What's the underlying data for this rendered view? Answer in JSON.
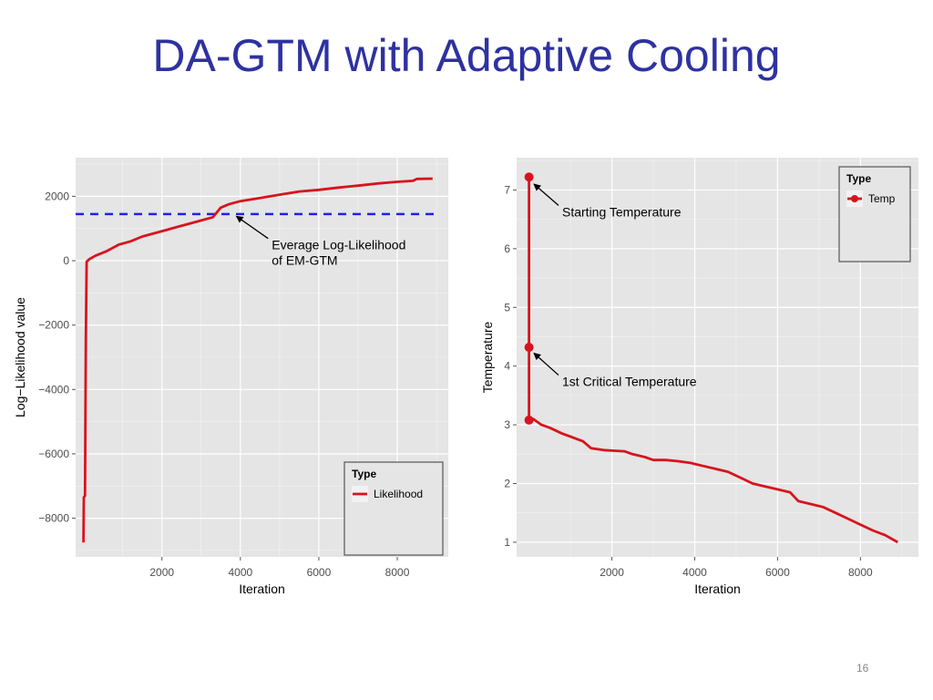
{
  "slide": {
    "title": "DA-GTM with Adaptive Cooling",
    "page_number": "16"
  },
  "colors": {
    "title": "#2e32a0",
    "series": "#d7141e",
    "reference_line": "#2020ee",
    "panel_background": "#e5e5e5",
    "grid": "#ffffff"
  },
  "chart_data": [
    {
      "type": "line",
      "xlabel": "Iteration",
      "ylabel": "Log−Likelihood value",
      "xlim": [
        -200,
        9300
      ],
      "ylim": [
        -9200,
        3200
      ],
      "x_ticks": [
        2000,
        4000,
        6000,
        8000
      ],
      "x_tick_labels": [
        "2000",
        "4000",
        "6000",
        "8000"
      ],
      "y_ticks": [
        -8000,
        -6000,
        -4000,
        -2000,
        0,
        2000
      ],
      "y_tick_labels": [
        "−8000",
        "−6000",
        "−4000",
        "−2000",
        "0",
        "2000"
      ],
      "grid": true,
      "legend": {
        "title": "Type",
        "position": "bottom-right",
        "entries": [
          "Likelihood"
        ]
      },
      "series": [
        {
          "name": "Likelihood",
          "color": "#d7141e",
          "x": [
            0,
            10,
            10,
            40,
            60,
            80,
            150,
            300,
            600,
            900,
            1200,
            1500,
            1800,
            2100,
            2400,
            2700,
            3000,
            3300,
            3400,
            3500,
            3700,
            4000,
            4500,
            5000,
            5500,
            6000,
            6500,
            7000,
            7500,
            8000,
            8400,
            8500,
            8900
          ],
          "y": [
            -8750,
            -7400,
            -7350,
            -7300,
            -2500,
            -30,
            50,
            150,
            300,
            500,
            600,
            750,
            850,
            950,
            1050,
            1150,
            1250,
            1350,
            1500,
            1650,
            1750,
            1850,
            1950,
            2050,
            2150,
            2200,
            2270,
            2330,
            2400,
            2450,
            2480,
            2540,
            2550
          ]
        }
      ],
      "reference_lines": [
        {
          "y": 1450,
          "style": "dashed",
          "color": "#2020ee"
        }
      ],
      "annotations": [
        {
          "lines": [
            "Everage Log-Likelihood",
            "of EM-GTM"
          ],
          "arrow_to": [
            3900,
            1380
          ],
          "text_at": [
            4800,
            350
          ]
        }
      ]
    },
    {
      "type": "line",
      "xlabel": "Iteration",
      "ylabel": "Temperature",
      "xlim": [
        -300,
        9400
      ],
      "ylim": [
        0.75,
        7.55
      ],
      "x_ticks": [
        2000,
        4000,
        6000,
        8000
      ],
      "x_tick_labels": [
        "2000",
        "4000",
        "6000",
        "8000"
      ],
      "y_ticks": [
        1,
        2,
        3,
        4,
        5,
        6,
        7
      ],
      "y_tick_labels": [
        "1",
        "2",
        "3",
        "4",
        "5",
        "6",
        "7"
      ],
      "grid": true,
      "legend": {
        "title": "Type",
        "position": "top-right",
        "entries": [
          "Temp"
        ]
      },
      "series": [
        {
          "name": "Temp",
          "color": "#d7141e",
          "x": [
            0,
            0,
            0,
            100,
            300,
            500,
            800,
            1000,
            1300,
            1500,
            1800,
            2000,
            2300,
            2500,
            2800,
            3000,
            3300,
            3600,
            3900,
            4200,
            4500,
            4800,
            5100,
            5400,
            5700,
            6000,
            6300,
            6500,
            6800,
            7100,
            7400,
            7700,
            8000,
            8300,
            8600,
            8900
          ],
          "y": [
            7.22,
            4.32,
            3.08,
            3.1,
            3.0,
            2.95,
            2.85,
            2.8,
            2.72,
            2.6,
            2.57,
            2.56,
            2.55,
            2.5,
            2.45,
            2.4,
            2.4,
            2.38,
            2.35,
            2.3,
            2.25,
            2.2,
            2.1,
            2.0,
            1.95,
            1.9,
            1.85,
            1.7,
            1.65,
            1.6,
            1.5,
            1.4,
            1.3,
            1.2,
            1.12,
            1.0
          ]
        }
      ],
      "markers": [
        {
          "x": 0,
          "y": 7.22
        },
        {
          "x": 0,
          "y": 4.32
        },
        {
          "x": 0,
          "y": 3.08
        }
      ],
      "annotations": [
        {
          "lines": [
            "Starting Temperature"
          ],
          "arrow_to": [
            120,
            7.1
          ],
          "text_at": [
            800,
            6.55
          ]
        },
        {
          "lines": [
            "1st Critical Temperature"
          ],
          "arrow_to": [
            120,
            4.22
          ],
          "text_at": [
            800,
            3.66
          ]
        }
      ]
    }
  ]
}
